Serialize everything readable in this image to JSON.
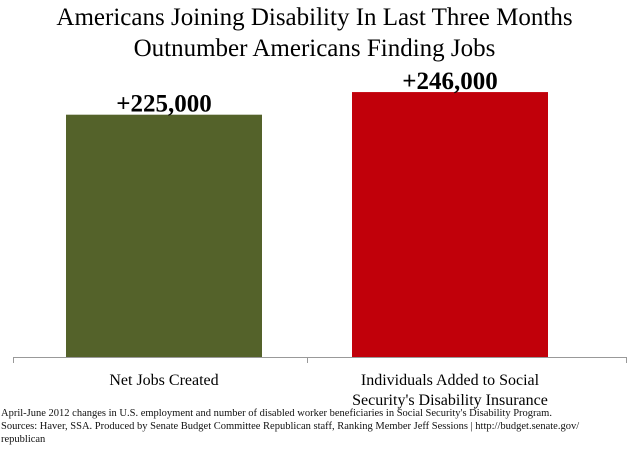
{
  "title": {
    "line1": "Americans Joining Disability In Last Three Months",
    "line2": "Outnumber Americans Finding Jobs"
  },
  "chart_data": {
    "type": "bar",
    "categories": [
      [
        "Net Jobs Created"
      ],
      [
        "Individuals Added to Social",
        "Security's Disability Insurance"
      ]
    ],
    "values": [
      225000,
      246000
    ],
    "data_labels": [
      "+225,000",
      "+246,000"
    ],
    "colors": [
      "#54622a",
      "#c1000a"
    ],
    "axis_color": "#999999",
    "ylim": [
      0,
      260000
    ],
    "grid": false,
    "legend": "none"
  },
  "footnote": {
    "line1": "April-June 2012 changes in U.S. employment and number of disabled worker beneficiaries in Social Security's Disability Program.",
    "line2": "Sources: Haver, SSA. Produced by Senate Budget Committee Republican staff, Ranking Member Jeff Sessions | http://budget.senate.gov/",
    "line3": "republican"
  }
}
